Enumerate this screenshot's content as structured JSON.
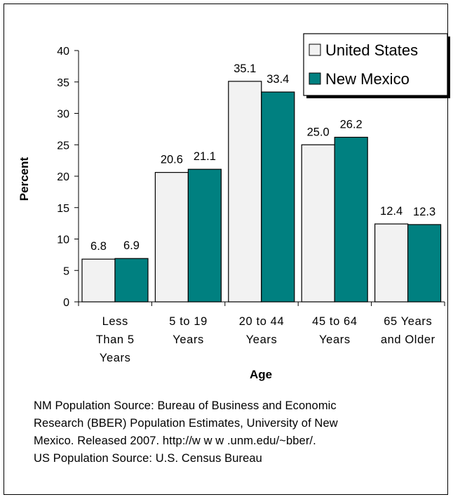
{
  "chart_data": {
    "type": "bar",
    "title": "",
    "xlabel": "Age",
    "ylabel": "Percent",
    "ylim": [
      0,
      40
    ],
    "yticks": [
      0,
      5,
      10,
      15,
      20,
      25,
      30,
      35,
      40
    ],
    "categories": [
      [
        "Less",
        "Than 5",
        "Years"
      ],
      [
        "5 to 19",
        "Years"
      ],
      [
        "20 to 44",
        "Years"
      ],
      [
        "45 to 64",
        "Years"
      ],
      [
        "65 Years",
        "and Older"
      ]
    ],
    "series": [
      {
        "name": "United States",
        "color": "#f2f2f2",
        "values": [
          6.8,
          20.6,
          35.1,
          25.0,
          12.4
        ]
      },
      {
        "name": "New Mexico",
        "color": "#008080",
        "values": [
          6.9,
          21.1,
          33.4,
          26.2,
          12.3
        ]
      }
    ],
    "data_labels": [
      [
        "6.8",
        "20.6",
        "35.1",
        "25.0",
        "12.4"
      ],
      [
        "6.9",
        "21.1",
        "33.4",
        "26.2",
        "12.3"
      ]
    ],
    "legend": "top-right",
    "grid": false
  },
  "source_note": {
    "lines": [
      "NM Population Source:  Bureau of Business and Economic",
      "Research (BBER) Population Estimates, University of New",
      "Mexico. Released 2007.  http://w w w .unm.edu/~bber/.",
      "US Population Source: U.S. Census Bureau"
    ]
  }
}
